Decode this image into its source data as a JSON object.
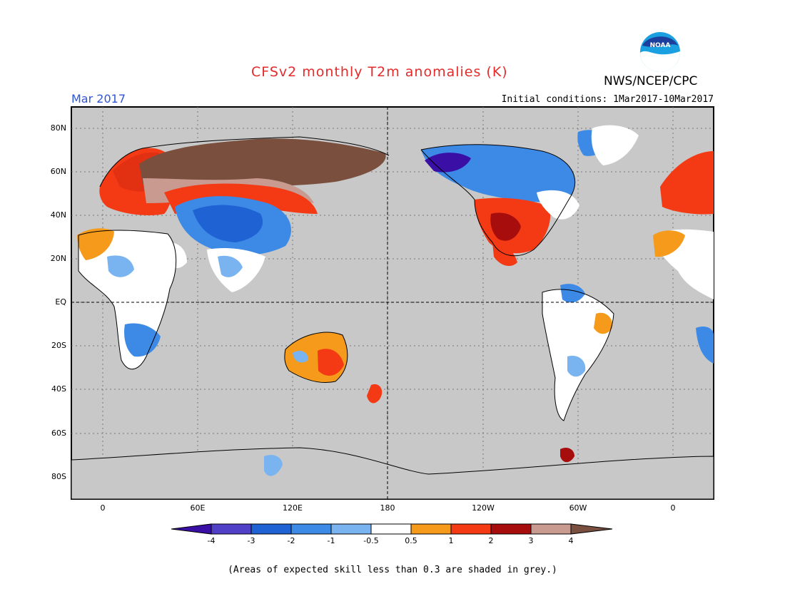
{
  "title": "CFSv2 monthly T2m anomalies (K)",
  "organization": "NWS/NCEP/CPC",
  "logo_text": "NOAA",
  "valid_month": "Mar 2017",
  "initial_conditions": "Initial conditions: 1Mar2017-10Mar2017",
  "footnote": "(Areas of expected skill less than 0.3 are shaded in grey.)",
  "map": {
    "background": "#c8c8c8",
    "latitude_labels": [
      "80N",
      "60N",
      "40N",
      "20N",
      "EQ",
      "20S",
      "40S",
      "60S",
      "80S"
    ],
    "longitude_labels": [
      "0",
      "60E",
      "120E",
      "180",
      "120W",
      "60W",
      "0"
    ]
  },
  "colorbar": {
    "labels": [
      "-4",
      "-3",
      "-2",
      "-1",
      "-0.5",
      "0.5",
      "1",
      "2",
      "3",
      "4"
    ],
    "colors": [
      "#3a0fa6",
      "#5040c8",
      "#1f62d4",
      "#3d8ae6",
      "#7ab4f0",
      "#ffffff",
      "#f59a1a",
      "#f43a14",
      "#a80d0d",
      "#c89a90",
      "#79503f"
    ]
  }
}
